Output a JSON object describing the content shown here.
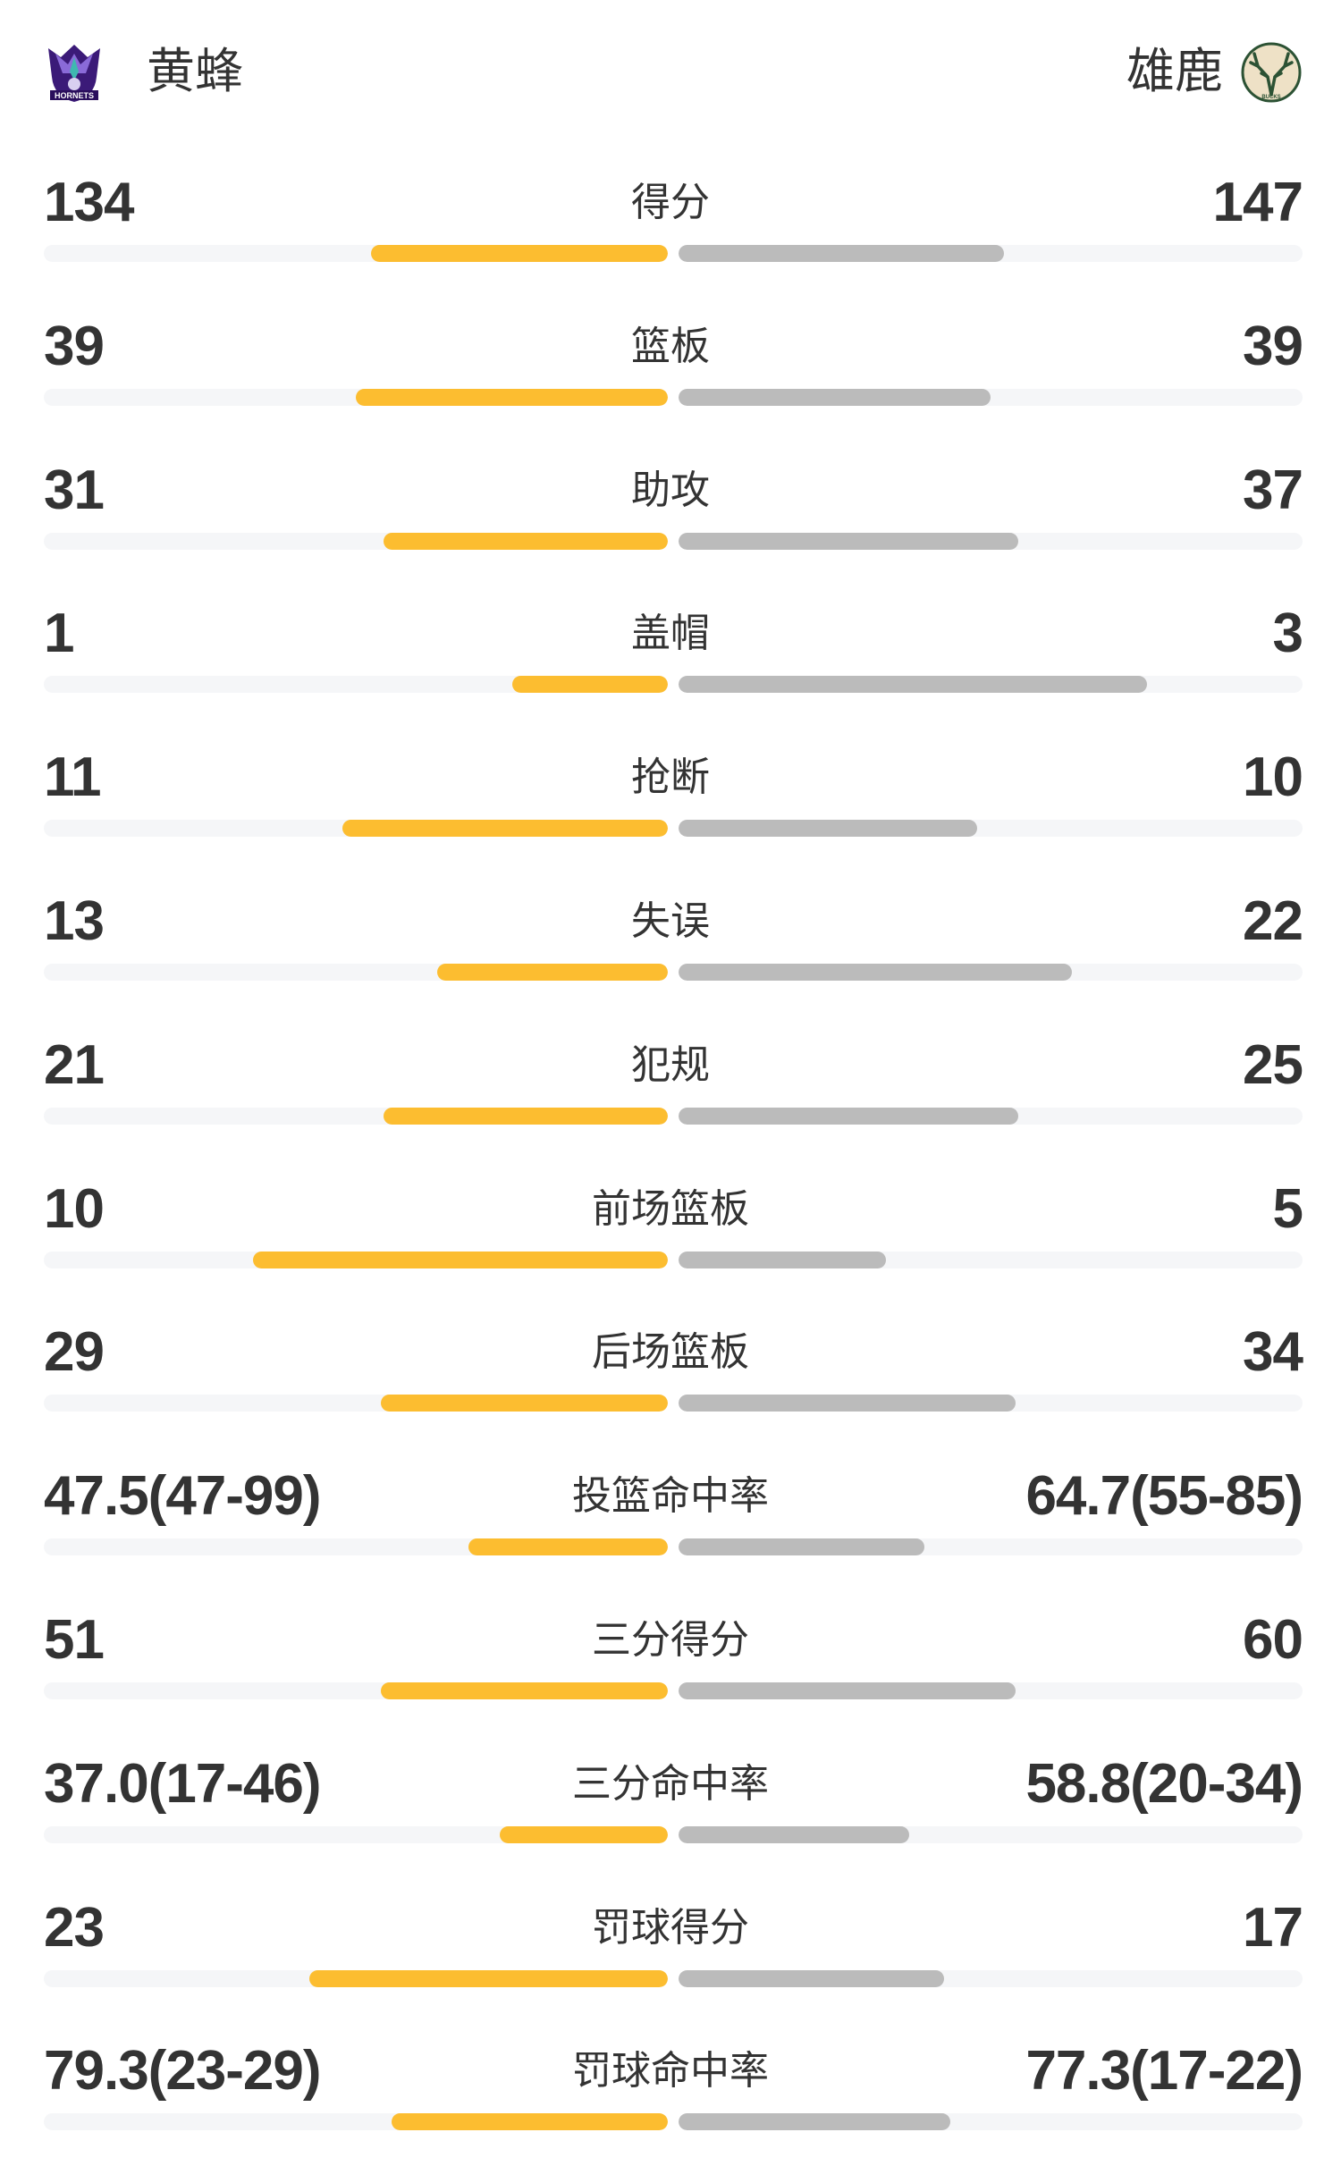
{
  "colors": {
    "home_bar": "#FCBD30",
    "away_bar": "#BBBBBB",
    "track": "#F5F6F8",
    "text": "#333333"
  },
  "header": {
    "home": {
      "name": "黄蜂",
      "logo": "hornets-logo",
      "logo_text": "HORNETS"
    },
    "away": {
      "name": "雄鹿",
      "logo": "bucks-logo",
      "logo_text": "BUCKS"
    }
  },
  "stats": [
    {
      "label": "得分",
      "home": "134",
      "away": "147",
      "home_fill": 0.476,
      "away_fill": 0.522
    },
    {
      "label": "篮板",
      "home": "39",
      "away": "39",
      "home_fill": 0.5,
      "away_fill": 0.5
    },
    {
      "label": "助攻",
      "home": "31",
      "away": "37",
      "home_fill": 0.456,
      "away_fill": 0.544
    },
    {
      "label": "盖帽",
      "home": "1",
      "away": "3",
      "home_fill": 0.25,
      "away_fill": 0.75
    },
    {
      "label": "抢断",
      "home": "11",
      "away": "10",
      "home_fill": 0.522,
      "away_fill": 0.478
    },
    {
      "label": "失误",
      "home": "13",
      "away": "22",
      "home_fill": 0.37,
      "away_fill": 0.63
    },
    {
      "label": "犯规",
      "home": "21",
      "away": "25",
      "home_fill": 0.456,
      "away_fill": 0.544
    },
    {
      "label": "前场篮板",
      "home": "10",
      "away": "5",
      "home_fill": 0.665,
      "away_fill": 0.333
    },
    {
      "label": "后场篮板",
      "home": "29",
      "away": "34",
      "home_fill": 0.46,
      "away_fill": 0.54
    },
    {
      "label": "投篮命中率",
      "home": "47.5(47-99)",
      "away": "64.7(55-85)",
      "home_fill": 0.32,
      "away_fill": 0.394
    },
    {
      "label": "三分得分",
      "home": "51",
      "away": "60",
      "home_fill": 0.46,
      "away_fill": 0.54
    },
    {
      "label": "三分命中率",
      "home": "37.0(17-46)",
      "away": "58.8(20-34)",
      "home_fill": 0.27,
      "away_fill": 0.37
    },
    {
      "label": "罚球得分",
      "home": "23",
      "away": "17",
      "home_fill": 0.575,
      "away_fill": 0.425
    },
    {
      "label": "罚球命中率",
      "home": "79.3(23-29)",
      "away": "77.3(17-22)",
      "home_fill": 0.443,
      "away_fill": 0.436
    }
  ]
}
